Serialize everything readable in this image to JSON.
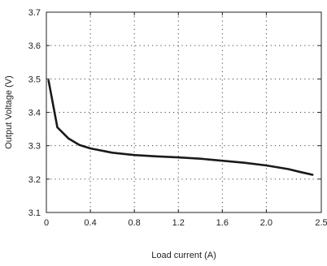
{
  "chart_data": {
    "type": "line",
    "title": "",
    "xlabel": "Load current (A)",
    "ylabel": "Output Voltage (V)",
    "xlim": [
      0,
      2.5
    ],
    "ylim": [
      3.1,
      3.7
    ],
    "xticks": [
      0,
      0.4,
      0.8,
      1.2,
      1.6,
      2.0,
      2.5
    ],
    "xtick_labels": [
      "0",
      "0.4",
      "0.8",
      "1.2",
      "1.6",
      "2.0",
      "2.5"
    ],
    "yticks": [
      3.1,
      3.2,
      3.3,
      3.4,
      3.5,
      3.6,
      3.7
    ],
    "ytick_labels": [
      "3.1",
      "3.2",
      "3.3",
      "3.4",
      "3.5",
      "3.6",
      "3.7"
    ],
    "grid": true,
    "legend": "none",
    "series": [
      {
        "color": "#1a1a1a",
        "x": [
          0.02,
          0.1,
          0.2,
          0.3,
          0.4,
          0.6,
          0.8,
          1.0,
          1.2,
          1.4,
          1.6,
          1.8,
          2.0,
          2.2,
          2.3,
          2.42
        ],
        "y": [
          3.495,
          3.355,
          3.322,
          3.302,
          3.292,
          3.279,
          3.272,
          3.268,
          3.265,
          3.261,
          3.255,
          3.249,
          3.241,
          3.23,
          3.222,
          3.213
        ]
      }
    ]
  }
}
